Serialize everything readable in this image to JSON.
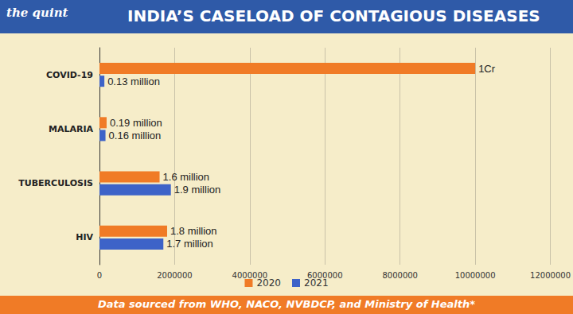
{
  "logo": "the quint",
  "source": "Data sourced from WHO, NACO, NVBDCP, and Ministry of Health*",
  "chart_data": {
    "type": "bar",
    "orientation": "horizontal",
    "title": "INDIA’S CASELOAD OF CONTAGIOUS DISEASES",
    "categories": [
      "COVID-19",
      "MALARIA",
      "TUBERCULOSIS",
      "HIV"
    ],
    "series": [
      {
        "name": "2020",
        "color": "#f07b26",
        "values": [
          10000000,
          190000,
          1600000,
          1800000
        ],
        "value_labels": [
          "1Cr",
          "0.19 million",
          "1.6 million",
          "1.8 million"
        ]
      },
      {
        "name": "2021",
        "color": "#3d63c8",
        "values": [
          130000,
          160000,
          1900000,
          1700000
        ],
        "value_labels": [
          "0.13 million",
          "0.16 million",
          "1.9 million",
          "1.7 million"
        ]
      }
    ],
    "xlim": [
      0,
      12000000
    ],
    "xticks": [
      0,
      2000000,
      4000000,
      6000000,
      8000000,
      10000000,
      12000000
    ],
    "grid": true,
    "legend": "bottom",
    "data_labels": true
  }
}
